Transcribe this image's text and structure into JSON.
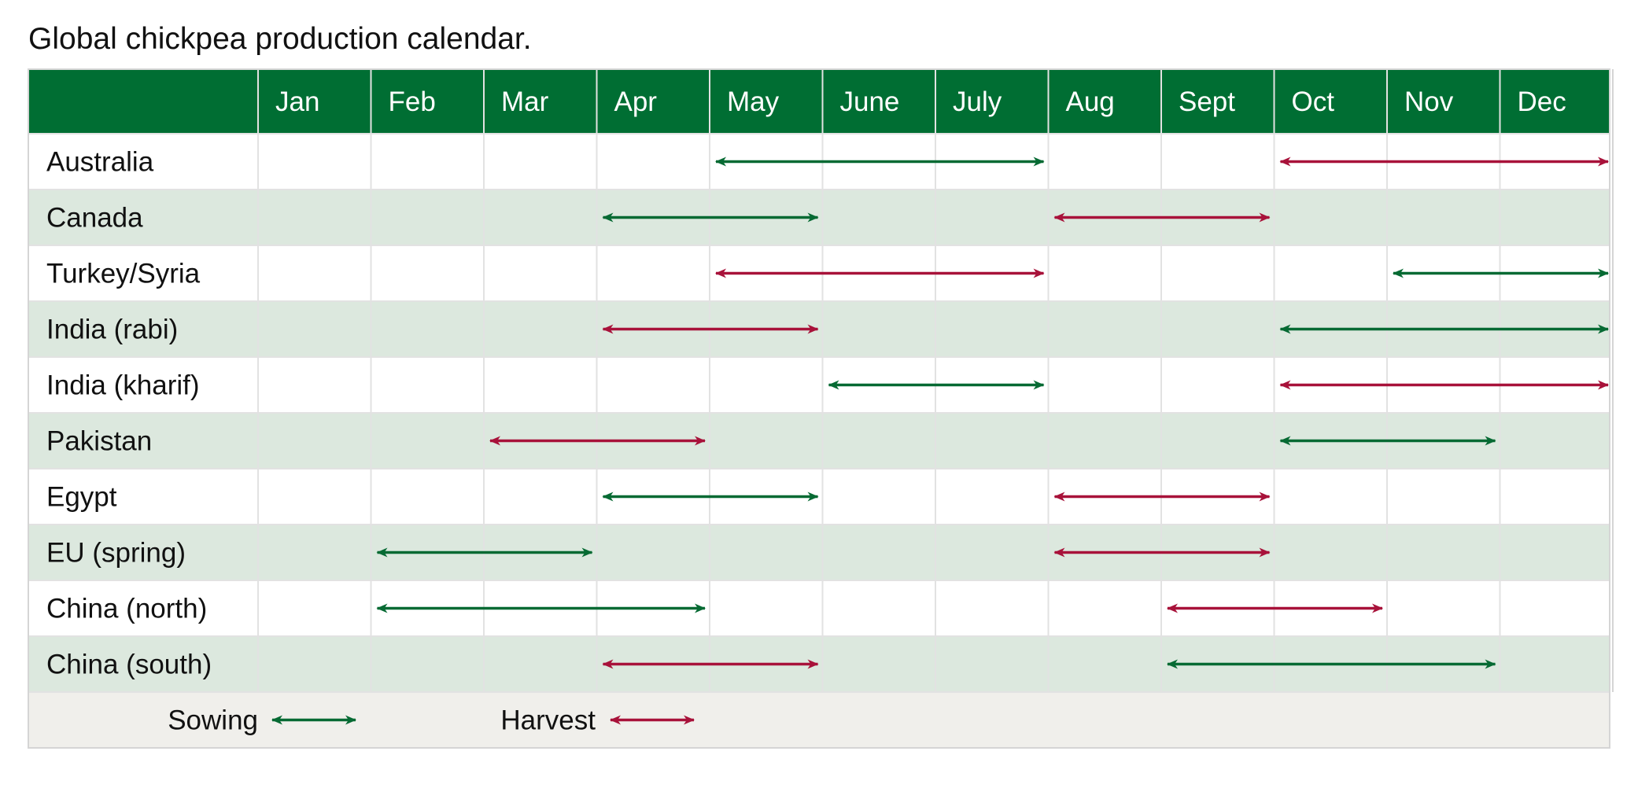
{
  "title": "Global chickpea production calendar.",
  "months": [
    "Jan",
    "Feb",
    "Mar",
    "Apr",
    "May",
    "June",
    "July",
    "Aug",
    "Sept",
    "Oct",
    "Nov",
    "Dec"
  ],
  "colors": {
    "header_bg": "#006e33",
    "row_alt_bg": "#dce8de",
    "row_bg": "#ffffff",
    "legend_bg": "#f0efeb",
    "grid_line": "#d5d5d5",
    "sowing": "#066a33",
    "harvest": "#a8123a"
  },
  "chart_data": {
    "type": "table",
    "title": "Global chickpea production calendar.",
    "columns": [
      "Jan",
      "Feb",
      "Mar",
      "Apr",
      "May",
      "June",
      "July",
      "Aug",
      "Sept",
      "Oct",
      "Nov",
      "Dec"
    ],
    "rows": [
      {
        "country": "Australia",
        "sowing": [
          5,
          7
        ],
        "harvest": [
          10,
          12
        ]
      },
      {
        "country": "Canada",
        "sowing": [
          4,
          5
        ],
        "harvest": [
          8,
          9
        ]
      },
      {
        "country": "Turkey/Syria",
        "sowing": [
          11,
          12
        ],
        "harvest": [
          5,
          7
        ]
      },
      {
        "country": "India (rabi)",
        "sowing": [
          10,
          12
        ],
        "harvest": [
          4,
          5
        ]
      },
      {
        "country": "India (kharif)",
        "sowing": [
          6,
          7
        ],
        "harvest": [
          10,
          12
        ]
      },
      {
        "country": "Pakistan",
        "sowing": [
          10,
          11
        ],
        "harvest": [
          3,
          4
        ]
      },
      {
        "country": "Egypt",
        "sowing": [
          4,
          5
        ],
        "harvest": [
          8,
          9
        ]
      },
      {
        "country": "EU (spring)",
        "sowing": [
          2,
          3
        ],
        "harvest": [
          8,
          9
        ]
      },
      {
        "country": "China (north)",
        "sowing": [
          2,
          4
        ],
        "harvest": [
          9,
          10
        ]
      },
      {
        "country": "China (south)",
        "sowing": [
          9,
          11
        ],
        "harvest": [
          4,
          5
        ]
      }
    ],
    "legend": {
      "sowing_label": "Sowing",
      "harvest_label": "Harvest",
      "position": "bottom"
    }
  }
}
